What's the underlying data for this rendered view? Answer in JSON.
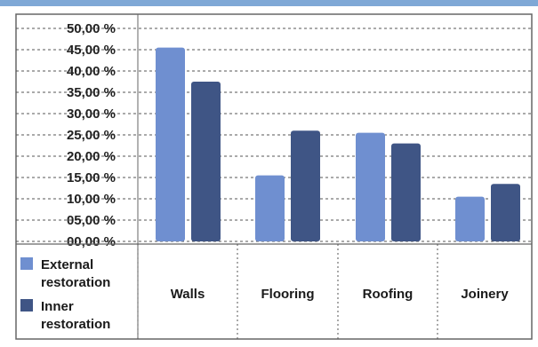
{
  "chart_data": {
    "type": "bar",
    "categories": [
      "Walls",
      "Flooring",
      "Roofing",
      "Joinery"
    ],
    "series": [
      {
        "name": "External restoration",
        "legend_lines": [
          "External",
          "restoration"
        ],
        "color": "#6f8fd0",
        "values": [
          45.5,
          15.5,
          25.5,
          10.5
        ]
      },
      {
        "name": "Inner restoration",
        "legend_lines": [
          "Inner",
          "restoration"
        ],
        "color": "#3f5585",
        "values": [
          37.5,
          26.0,
          23.0,
          13.5
        ]
      }
    ],
    "y_ticks": [
      "00,00 %",
      "05,00 %",
      "10,00 %",
      "15,00 %",
      "20,00 %",
      "25,00 %",
      "30,00 %",
      "35,00 %",
      "40,00 %",
      "45,00 %",
      "50,00 %"
    ],
    "ylim": [
      0,
      50
    ],
    "grid": true,
    "legend_position": "bottom-left table"
  }
}
